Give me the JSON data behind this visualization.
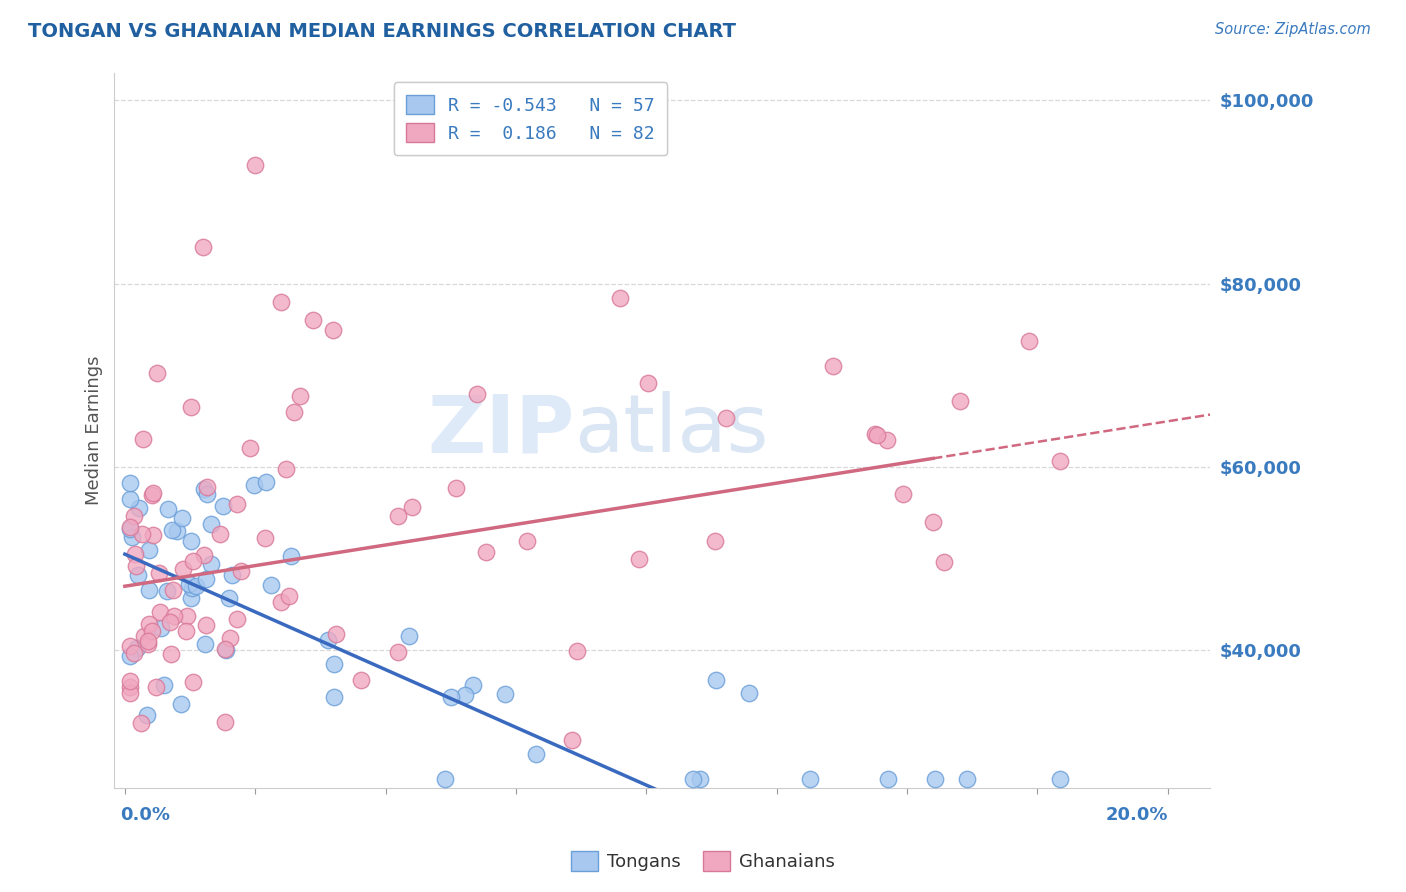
{
  "title": "TONGAN VS GHANAIAN MEDIAN EARNINGS CORRELATION CHART",
  "source": "Source: ZipAtlas.com",
  "ylabel": "Median Earnings",
  "y_ticks": [
    40000,
    60000,
    80000,
    100000
  ],
  "y_tick_labels": [
    "$40,000",
    "$60,000",
    "$80,000",
    "$100,000"
  ],
  "x_min": 0.0,
  "x_max": 0.205,
  "y_min": 25000,
  "y_max": 103000,
  "tongan_color": "#a8c8f0",
  "ghanaian_color": "#f0a8c0",
  "tongan_edge": "#6a9fd8",
  "ghanaian_edge": "#d87898",
  "trend_tongan_color": "#3a6abf",
  "trend_ghanaian_color": "#d06880",
  "R_tongan": -0.543,
  "N_tongan": 57,
  "R_ghanaian": 0.186,
  "N_ghanaian": 82,
  "legend_label_tongan": "Tongans",
  "legend_label_ghanaian": "Ghanaians",
  "watermark_zip": "ZIP",
  "watermark_atlas": "atlas",
  "background_color": "#ffffff",
  "title_color": "#2060a0",
  "axis_label_color": "#555555",
  "tick_label_color": "#3a7abf",
  "source_color": "#3a7abf",
  "grid_color": "#d8d8d8",
  "grid_style": "--"
}
